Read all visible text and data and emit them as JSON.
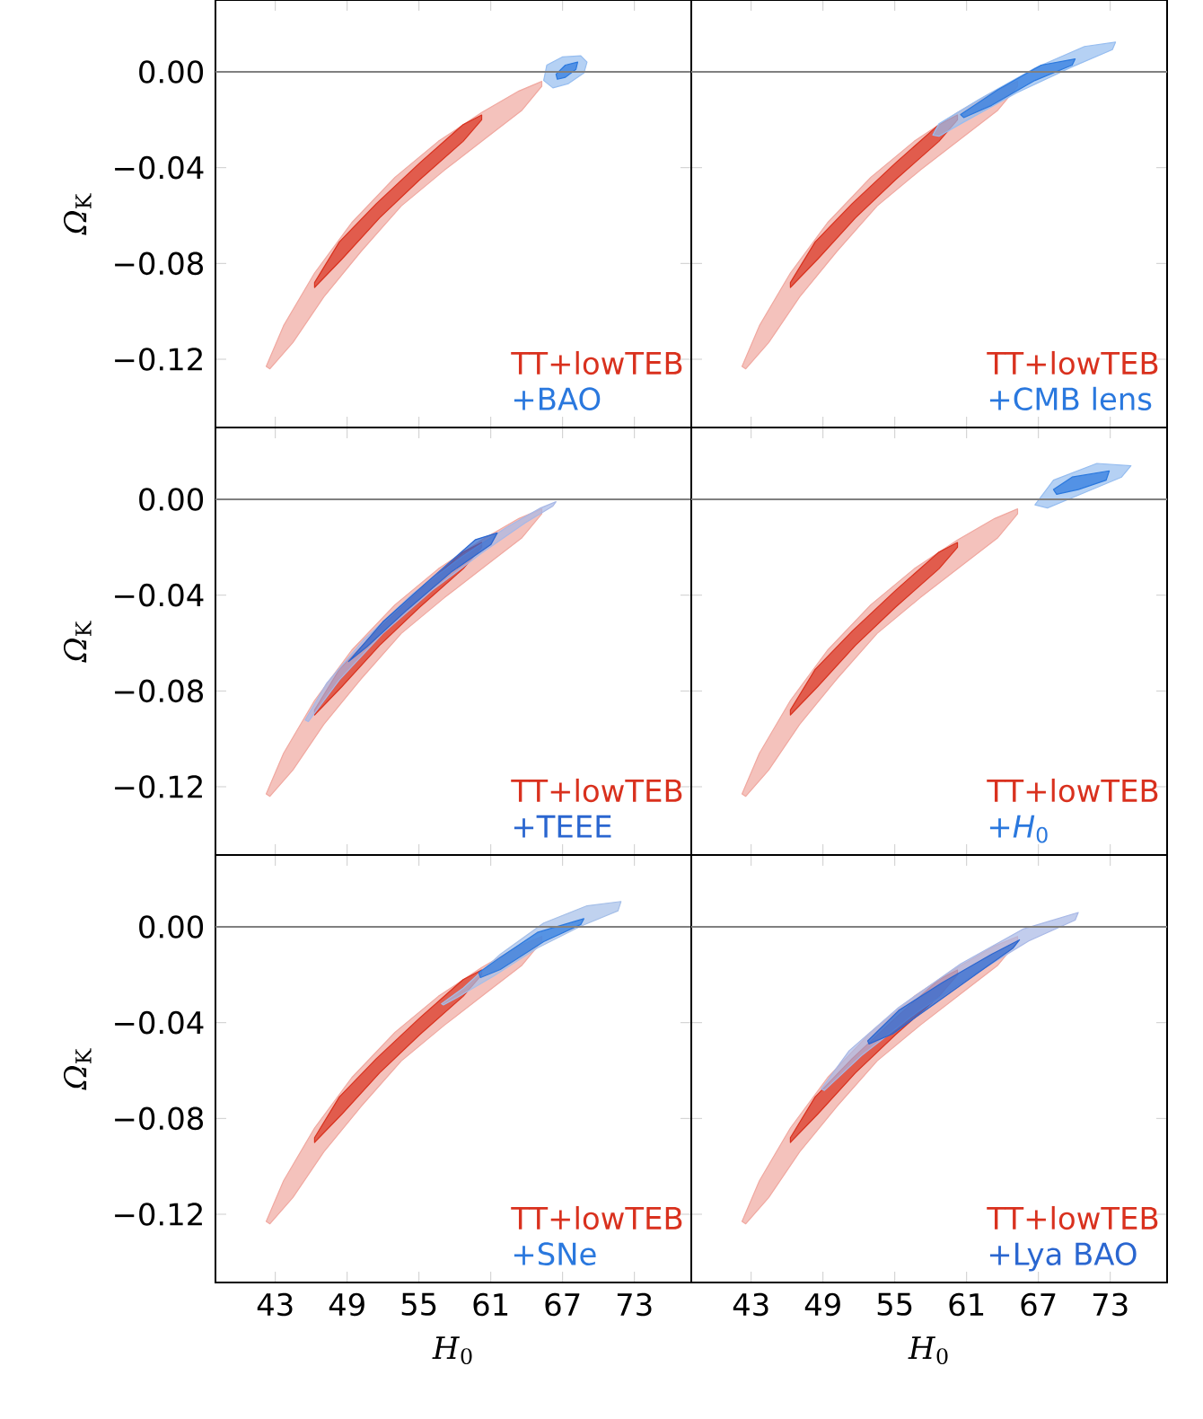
{
  "chart_data": [
    {
      "type": "area",
      "xlim": [
        38,
        77.75
      ],
      "ylim": [
        -0.1485,
        0.03
      ],
      "xticks": [
        43,
        49,
        55,
        61,
        67,
        73
      ],
      "yticks": [
        {
          "value": -0.12,
          "label": "−0.12"
        },
        {
          "value": -0.08,
          "label": "−0.08"
        },
        {
          "value": -0.04,
          "label": "−0.04"
        },
        {
          "value": 0,
          "label": "0.00"
        }
      ],
      "ylabel": "*Ω*$_{K}$",
      "tick_labels": "y",
      "legend": "bottom right",
      "ref_lines": [
        {
          "axis": "y",
          "value": 0,
          "color": "#808080"
        }
      ],
      "series": [
        {
          "color": "#f0a8a0",
          "x": [
            42.24,
            43.69,
            46.28,
            49.38,
            53.0,
            56.62,
            60.24,
            63.35,
            65.26,
            65.26,
            63.61,
            60.76,
            57.14,
            53.52,
            50.16,
            47.05,
            44.47,
            42.55
          ],
          "values": [
            -0.123,
            -0.106,
            -0.084,
            -0.063,
            -0.044,
            -0.029,
            -0.017,
            -0.008,
            -0.004,
            -0.006,
            -0.016,
            -0.027,
            -0.041,
            -0.056,
            -0.075,
            -0.094,
            -0.113,
            -0.124
          ]
        },
        {
          "name": "TT+lowTEB",
          "color": "#d9311e",
          "x": [
            46.28,
            48.35,
            51.45,
            55.07,
            58.69,
            60.24,
            60.24,
            58.69,
            55.07,
            51.71,
            48.6,
            46.28
          ],
          "values": [
            -0.088,
            -0.071,
            -0.055,
            -0.038,
            -0.022,
            -0.018,
            -0.02,
            -0.029,
            -0.045,
            -0.061,
            -0.078,
            -0.09
          ]
        },
        {
          "color": "#96bdf0",
          "x": [
            65.42,
            65.68,
            66.97,
            68.52,
            69.04,
            68.78,
            67.49,
            66.19
          ],
          "values": [
            -0.0036,
            0.0028,
            0.0062,
            0.0067,
            0.0041,
            -0.0005,
            -0.0049,
            -0.0067
          ]
        },
        {
          "name": "+BAO",
          "color": "#2a78de",
          "x": [
            66.45,
            67.23,
            68.26,
            68.11,
            67.23,
            66.56
          ],
          "values": [
            -0.001,
            0.0028,
            0.0041,
            0.001,
            -0.0023,
            -0.0031
          ]
        }
      ]
    },
    {
      "type": "area",
      "xlim": [
        38,
        77.75
      ],
      "ylim": [
        -0.1485,
        0.03
      ],
      "xticks": [
        43,
        49,
        55,
        61,
        67,
        73
      ],
      "yticks": [
        -0.12,
        -0.08,
        -0.04,
        0
      ],
      "tick_labels": false,
      "legend": "bottom right",
      "ref_lines": [
        {
          "axis": "y",
          "value": 0,
          "color": "#808080"
        }
      ],
      "series": [
        {
          "color": "#f0a8a0",
          "x": [
            42.24,
            43.69,
            46.28,
            49.38,
            53.0,
            56.62,
            60.24,
            63.35,
            65.26,
            65.26,
            63.61,
            60.76,
            57.14,
            53.52,
            50.16,
            47.05,
            44.47,
            42.55
          ],
          "values": [
            -0.123,
            -0.106,
            -0.084,
            -0.063,
            -0.044,
            -0.029,
            -0.017,
            -0.008,
            -0.004,
            -0.006,
            -0.016,
            -0.027,
            -0.041,
            -0.056,
            -0.075,
            -0.094,
            -0.113,
            -0.124
          ]
        },
        {
          "name": "TT+lowTEB",
          "color": "#d9311e",
          "x": [
            46.28,
            48.35,
            51.45,
            55.07,
            58.69,
            60.24,
            60.24,
            58.69,
            55.07,
            51.71,
            48.6,
            46.28
          ],
          "values": [
            -0.088,
            -0.071,
            -0.055,
            -0.038,
            -0.022,
            -0.018,
            -0.02,
            -0.029,
            -0.045,
            -0.061,
            -0.078,
            -0.09
          ]
        },
        {
          "color": "#96bdf0",
          "x": [
            58.18,
            58.69,
            62.06,
            66.71,
            70.85,
            73.44,
            73.18,
            69.82,
            65.16,
            60.5,
            58.69
          ],
          "values": [
            -0.0264,
            -0.0217,
            -0.0114,
            0.0016,
            0.0106,
            0.0124,
            0.0093,
            0.0021,
            -0.0088,
            -0.0217,
            -0.0269
          ]
        },
        {
          "name": "+CMB lens",
          "color": "#2a78de",
          "x": [
            60.5,
            63.6,
            67.23,
            70.07,
            69.82,
            66.71,
            63.09,
            60.76
          ],
          "values": [
            -0.0178,
            -0.0075,
            0.0028,
            0.0054,
            0.0028,
            -0.0036,
            -0.014,
            -0.0191
          ]
        }
      ]
    },
    {
      "type": "area",
      "xlim": [
        38,
        77.75
      ],
      "ylim": [
        -0.1485,
        0.03
      ],
      "xticks": [
        43,
        49,
        55,
        61,
        67,
        73
      ],
      "yticks": [
        {
          "value": -0.12,
          "label": "−0.12"
        },
        {
          "value": -0.08,
          "label": "−0.08"
        },
        {
          "value": -0.04,
          "label": "−0.04"
        },
        {
          "value": 0,
          "label": "0.00"
        }
      ],
      "ylabel": "*Ω*$_{K}$",
      "tick_labels": "y",
      "legend": "bottom right",
      "ref_lines": [
        {
          "axis": "y",
          "value": 0,
          "color": "#808080"
        }
      ],
      "series": [
        {
          "color": "#f0a8a0",
          "x": [
            42.24,
            43.69,
            46.28,
            49.38,
            53.0,
            56.62,
            60.24,
            63.35,
            65.26,
            65.26,
            63.61,
            60.76,
            57.14,
            53.52,
            50.16,
            47.05,
            44.47,
            42.55
          ],
          "values": [
            -0.123,
            -0.106,
            -0.084,
            -0.063,
            -0.044,
            -0.029,
            -0.017,
            -0.008,
            -0.004,
            -0.006,
            -0.016,
            -0.027,
            -0.041,
            -0.056,
            -0.075,
            -0.094,
            -0.113,
            -0.124
          ]
        },
        {
          "name": "TT+lowTEB",
          "color": "#d9311e",
          "x": [
            46.28,
            48.35,
            51.45,
            55.07,
            58.69,
            60.24,
            60.24,
            58.69,
            55.07,
            51.71,
            48.6,
            46.28
          ],
          "values": [
            -0.088,
            -0.071,
            -0.055,
            -0.038,
            -0.022,
            -0.018,
            -0.02,
            -0.029,
            -0.045,
            -0.061,
            -0.078,
            -0.09
          ]
        },
        {
          "color": "#a8b8e6",
          "x": [
            45.5,
            47.31,
            50.42,
            54.55,
            58.69,
            62.31,
            65.16,
            66.45,
            66.19,
            63.87,
            60.24,
            56.11,
            51.97,
            48.35,
            45.76
          ],
          "values": [
            -0.0921,
            -0.0766,
            -0.0585,
            -0.0391,
            -0.0236,
            -0.0117,
            -0.0036,
            -0.001,
            -0.0028,
            -0.0098,
            -0.0224,
            -0.0379,
            -0.056,
            -0.0754,
            -0.0928
          ]
        },
        {
          "name": "+TEEE",
          "color": "#2a66d0",
          "x": [
            49.12,
            51.97,
            55.59,
            59.73,
            61.54,
            61.02,
            57.66,
            54.04,
            50.67
          ],
          "values": [
            -0.0677,
            -0.0512,
            -0.0349,
            -0.0168,
            -0.014,
            -0.0188,
            -0.0305,
            -0.046,
            -0.0615
          ]
        }
      ]
    },
    {
      "type": "area",
      "xlim": [
        38,
        77.75
      ],
      "ylim": [
        -0.1485,
        0.03
      ],
      "xticks": [
        43,
        49,
        55,
        61,
        67,
        73
      ],
      "yticks": [
        -0.12,
        -0.08,
        -0.04,
        0
      ],
      "tick_labels": false,
      "legend": "bottom right",
      "ref_lines": [
        {
          "axis": "y",
          "value": 0,
          "color": "#808080"
        }
      ],
      "series": [
        {
          "color": "#f0a8a0",
          "x": [
            42.24,
            43.69,
            46.28,
            49.38,
            53.0,
            56.62,
            60.24,
            63.35,
            65.26,
            65.26,
            63.61,
            60.76,
            57.14,
            53.52,
            50.16,
            47.05,
            44.47,
            42.55
          ],
          "values": [
            -0.123,
            -0.106,
            -0.084,
            -0.063,
            -0.044,
            -0.029,
            -0.017,
            -0.008,
            -0.004,
            -0.006,
            -0.016,
            -0.027,
            -0.041,
            -0.056,
            -0.075,
            -0.094,
            -0.113,
            -0.124
          ]
        },
        {
          "name": "TT+lowTEB",
          "color": "#d9311e",
          "x": [
            46.28,
            48.35,
            51.45,
            55.07,
            58.69,
            60.24,
            60.24,
            58.69,
            55.07,
            51.71,
            48.6,
            46.28
          ],
          "values": [
            -0.088,
            -0.071,
            -0.055,
            -0.038,
            -0.022,
            -0.018,
            -0.02,
            -0.029,
            -0.045,
            -0.061,
            -0.078,
            -0.09
          ]
        },
        {
          "color": "#96bdf0",
          "x": [
            66.71,
            68.26,
            71.88,
            74.73,
            73.95,
            70.85,
            67.75
          ],
          "values": [
            -0.0023,
            0.008,
            0.015,
            0.014,
            0.0093,
            0.0028,
            -0.0036
          ]
        },
        {
          "name": "+*H*$_{0}$",
          "color": "#2a78de",
          "x": [
            68.26,
            69.82,
            72.92,
            72.66,
            70.33,
            68.52
          ],
          "values": [
            0.0041,
            0.0093,
            0.0119,
            0.008,
            0.0041,
            0.0021
          ]
        }
      ]
    },
    {
      "type": "area",
      "xlim": [
        38,
        77.75
      ],
      "ylim": [
        -0.1485,
        0.03
      ],
      "xticks": [
        43,
        49,
        55,
        61,
        67,
        73
      ],
      "yticks": [
        {
          "value": -0.12,
          "label": "−0.12"
        },
        {
          "value": -0.08,
          "label": "−0.08"
        },
        {
          "value": -0.04,
          "label": "−0.04"
        },
        {
          "value": 0,
          "label": "0.00"
        }
      ],
      "xlabel": "*H*$_{0}$",
      "ylabel": "*Ω*$_{K}$",
      "legend": "bottom right",
      "ref_lines": [
        {
          "axis": "y",
          "value": 0,
          "color": "#808080"
        }
      ],
      "series": [
        {
          "color": "#f0a8a0",
          "x": [
            42.24,
            43.69,
            46.28,
            49.38,
            53.0,
            56.62,
            60.24,
            63.35,
            65.26,
            65.26,
            63.61,
            60.76,
            57.14,
            53.52,
            50.16,
            47.05,
            44.47,
            42.55
          ],
          "values": [
            -0.123,
            -0.106,
            -0.084,
            -0.063,
            -0.044,
            -0.029,
            -0.017,
            -0.008,
            -0.004,
            -0.006,
            -0.016,
            -0.027,
            -0.041,
            -0.056,
            -0.075,
            -0.094,
            -0.113,
            -0.124
          ]
        },
        {
          "name": "TT+lowTEB",
          "color": "#d9311e",
          "x": [
            46.28,
            48.35,
            51.45,
            55.07,
            58.69,
            60.24,
            60.24,
            58.69,
            55.07,
            51.71,
            48.6,
            46.28
          ],
          "values": [
            -0.088,
            -0.071,
            -0.055,
            -0.038,
            -0.022,
            -0.018,
            -0.02,
            -0.029,
            -0.045,
            -0.061,
            -0.078,
            -0.09
          ]
        },
        {
          "color": "#a5bfe8",
          "x": [
            56.88,
            58.69,
            61.8,
            65.42,
            69.04,
            71.88,
            71.63,
            68.52,
            64.9,
            61.28,
            58.18,
            57.04
          ],
          "values": [
            -0.0321,
            -0.0256,
            -0.0114,
            0.0016,
            0.0088,
            0.0106,
            0.0067,
            0.0003,
            -0.0088,
            -0.0204,
            -0.0295,
            -0.0326
          ]
        },
        {
          "name": "+SNe",
          "color": "#2a78de",
          "x": [
            59.99,
            61.8,
            64.9,
            68.78,
            68.52,
            65.42,
            61.8,
            60.14
          ],
          "values": [
            -0.0191,
            -0.0127,
            -0.0023,
            0.0034,
            0.001,
            -0.0062,
            -0.0178,
            -0.0212
          ]
        }
      ]
    },
    {
      "type": "area",
      "xlim": [
        38,
        77.75
      ],
      "ylim": [
        -0.1485,
        0.03
      ],
      "xticks": [
        43,
        49,
        55,
        61,
        67,
        73
      ],
      "yticks": [
        -0.12,
        -0.08,
        -0.04,
        0
      ],
      "xlabel": "*H*$_{0}$",
      "tick_labels": "x",
      "legend": "bottom right",
      "ref_lines": [
        {
          "axis": "y",
          "value": 0,
          "color": "#808080"
        }
      ],
      "series": [
        {
          "color": "#f0a8a0",
          "x": [
            42.24,
            43.69,
            46.28,
            49.38,
            53.0,
            56.62,
            60.24,
            63.35,
            65.26,
            65.26,
            63.61,
            60.76,
            57.14,
            53.52,
            50.16,
            47.05,
            44.47,
            42.55
          ],
          "values": [
            -0.123,
            -0.106,
            -0.084,
            -0.063,
            -0.044,
            -0.029,
            -0.017,
            -0.008,
            -0.004,
            -0.006,
            -0.016,
            -0.027,
            -0.041,
            -0.056,
            -0.075,
            -0.094,
            -0.113,
            -0.124
          ]
        },
        {
          "name": "TT+lowTEB",
          "color": "#d9311e",
          "x": [
            46.28,
            48.35,
            51.45,
            55.07,
            58.69,
            60.24,
            60.24,
            58.69,
            55.07,
            51.71,
            48.6,
            46.28
          ],
          "values": [
            -0.088,
            -0.071,
            -0.055,
            -0.038,
            -0.022,
            -0.018,
            -0.02,
            -0.029,
            -0.045,
            -0.061,
            -0.078,
            -0.09
          ]
        },
        {
          "color": "#a8b8e6",
          "x": [
            48.86,
            51.19,
            55.33,
            60.5,
            65.68,
            70.33,
            70.07,
            66.19,
            61.54,
            56.88,
            52.23,
            49.12
          ],
          "values": [
            -0.0677,
            -0.0517,
            -0.0336,
            -0.0155,
            -0.001,
            0.006,
            0.0028,
            -0.0059,
            -0.0201,
            -0.0356,
            -0.0537,
            -0.0683
          ]
        },
        {
          "name": "+Lya BAO",
          "color": "#2a66d0",
          "x": [
            52.74,
            55.33,
            58.95,
            63.09,
            65.42,
            64.9,
            62.06,
            58.43,
            54.81,
            52.85
          ],
          "values": [
            -0.0476,
            -0.0349,
            -0.0233,
            -0.0114,
            -0.0054,
            -0.0088,
            -0.0188,
            -0.0318,
            -0.0447,
            -0.0489
          ]
        }
      ]
    }
  ]
}
